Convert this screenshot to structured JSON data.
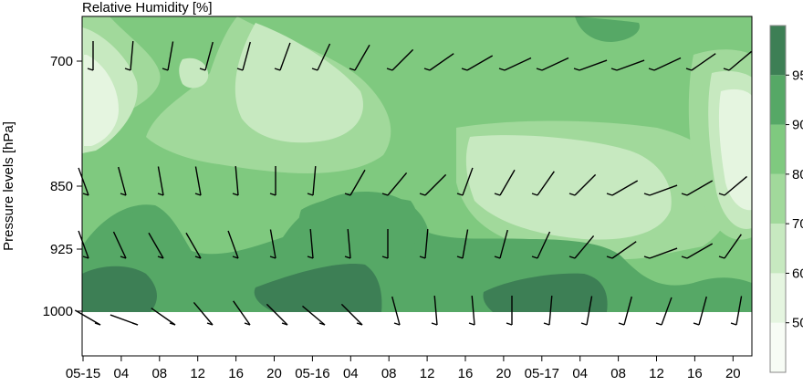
{
  "chart_data": {
    "type": "heatmap",
    "title": "Relative Humidity [%]",
    "ylabel": "Pressure levels [hPa]",
    "xlabel": "",
    "x_tick_labels": [
      "05-15",
      "04",
      "08",
      "12",
      "16",
      "20",
      "05-16",
      "04",
      "08",
      "12",
      "16",
      "20",
      "05-17",
      "04",
      "08",
      "12",
      "16",
      "20"
    ],
    "y_tick_labels": [
      "700",
      "850",
      "925",
      "1000"
    ],
    "y_levels": [
      700,
      850,
      925,
      1000
    ],
    "y_axis_extent_hpa": [
      630,
      1050
    ],
    "colorbar": {
      "tick_labels": [
        "50",
        "60",
        "70",
        "80",
        "90",
        "95"
      ],
      "boundaries": [
        40,
        50,
        60,
        70,
        80,
        90,
        95,
        100
      ],
      "colors": [
        "#f7fcf5",
        "#e5f5e0",
        "#c7e9c0",
        "#a1d99b",
        "#7fc97f",
        "#56a866",
        "#3d7f55"
      ]
    },
    "background_humidity_percent": 80,
    "humidity_regions": [
      {
        "level": 70,
        "region": "dry patch left, 700-800 hPa near 05-15"
      },
      {
        "level": 70,
        "region": "dry patch upper right near 05-17 20"
      },
      {
        "level": 90,
        "region": "moist band 1000-925 hPa across period"
      },
      {
        "level": 95,
        "region": "very moist cores near surface 05-15, 05-16 and 05-17"
      }
    ],
    "wind_barb_rows_hpa": [
      700,
      850,
      925,
      1000
    ],
    "wind_barbs_per_row": 18
  }
}
